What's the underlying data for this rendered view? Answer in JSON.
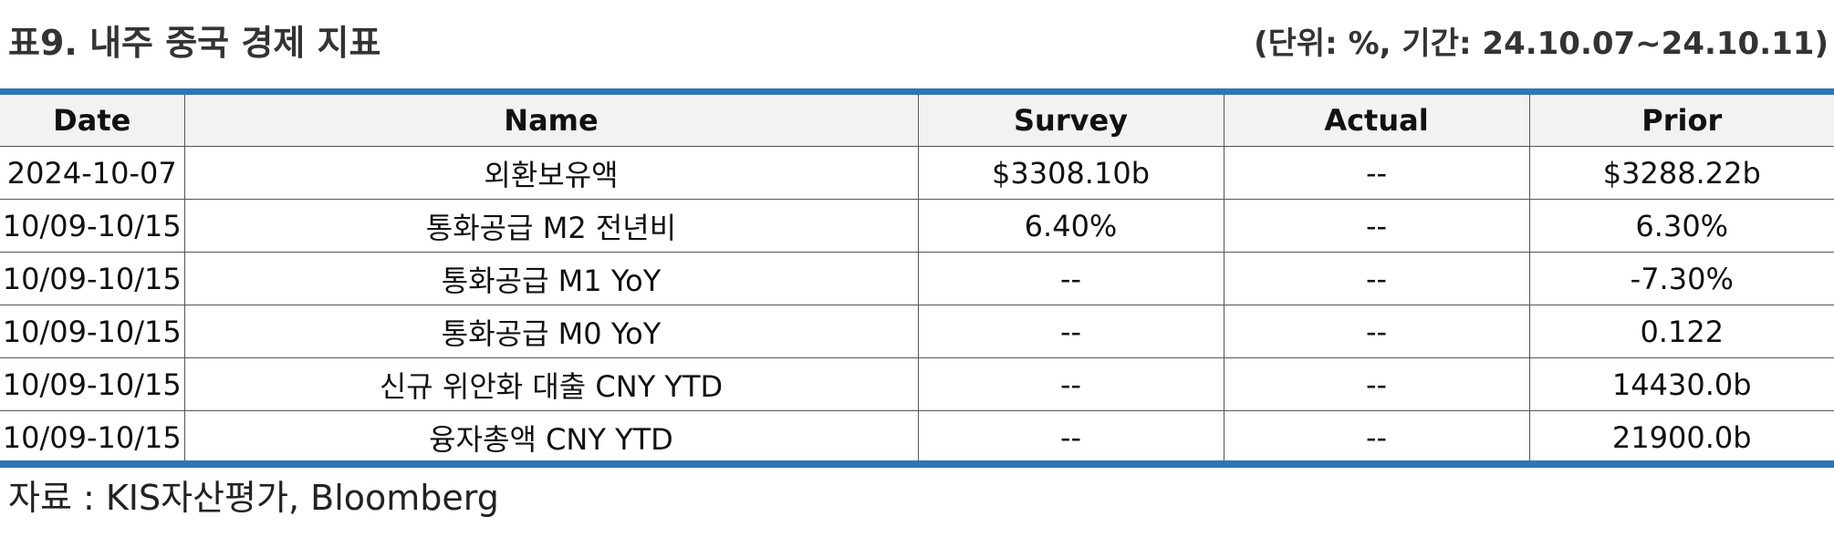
{
  "header": {
    "title": "표9. 내주 중국 경제 지표",
    "unit_note": "(단위: %, 기간: 24.10.07~24.10.11)"
  },
  "table": {
    "columns": [
      "Date",
      "Name",
      "Survey",
      "Actual",
      "Prior"
    ],
    "rows": [
      [
        "2024-10-07",
        "외환보유액",
        "$3308.10b",
        "--",
        "$3288.22b"
      ],
      [
        "10/09-10/15",
        "통화공급 M2 전년비",
        "6.40%",
        "--",
        "6.30%"
      ],
      [
        "10/09-10/15",
        "통화공급 M1 YoY",
        "--",
        "--",
        "-7.30%"
      ],
      [
        "10/09-10/15",
        "통화공급 M0 YoY",
        "--",
        "--",
        "0.122"
      ],
      [
        "10/09-10/15",
        "신규 위안화 대출 CNY YTD",
        "--",
        "--",
        "14430.0b"
      ],
      [
        "10/09-10/15",
        "융자총액 CNY YTD",
        "--",
        "--",
        "21900.0b"
      ]
    ]
  },
  "footer": {
    "source": "자료 : KIS자산평가, Bloomberg"
  },
  "colors": {
    "accent_rule": "#2e75b6",
    "header_fill": "#f2f2f2"
  }
}
